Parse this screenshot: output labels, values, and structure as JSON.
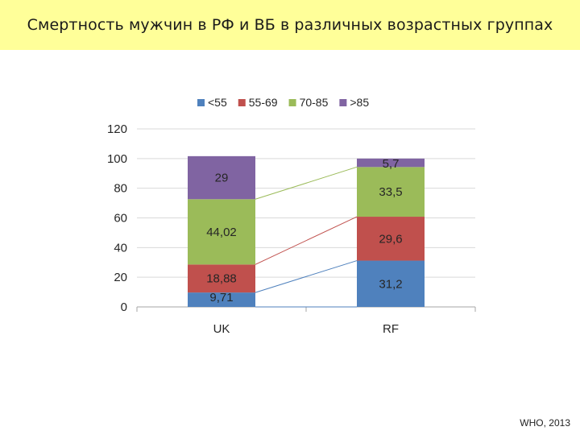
{
  "slide": {
    "title": "Смертность мужчин в РФ и ВБ в различных возрастных группах",
    "source": "WHO, 2013",
    "title_bg": "#ffff99"
  },
  "chart_data": {
    "type": "bar",
    "stacked": true,
    "categories": [
      "UK",
      "RF"
    ],
    "series": [
      {
        "name": "<55",
        "values": [
          9.71,
          31.2
        ],
        "labels": [
          "9,71",
          "31,2"
        ],
        "color": "#4f81bd"
      },
      {
        "name": "55-69",
        "values": [
          18.88,
          29.6
        ],
        "labels": [
          "18,88",
          "29,6"
        ],
        "color": "#c0504d"
      },
      {
        "name": "70-85",
        "values": [
          44.02,
          33.5
        ],
        "labels": [
          "44,02",
          "33,5"
        ],
        "color": "#9bbb59"
      },
      {
        "name": ">85",
        "values": [
          29,
          5.7
        ],
        "labels": [
          "29",
          "5,7"
        ],
        "color": "#8064a2"
      }
    ],
    "ylim": [
      0,
      120
    ],
    "yticks": [
      0,
      20,
      40,
      60,
      80,
      100,
      120
    ],
    "grid": true,
    "legend_position": "top",
    "series_lines": true,
    "xlabel": "",
    "ylabel": ""
  }
}
